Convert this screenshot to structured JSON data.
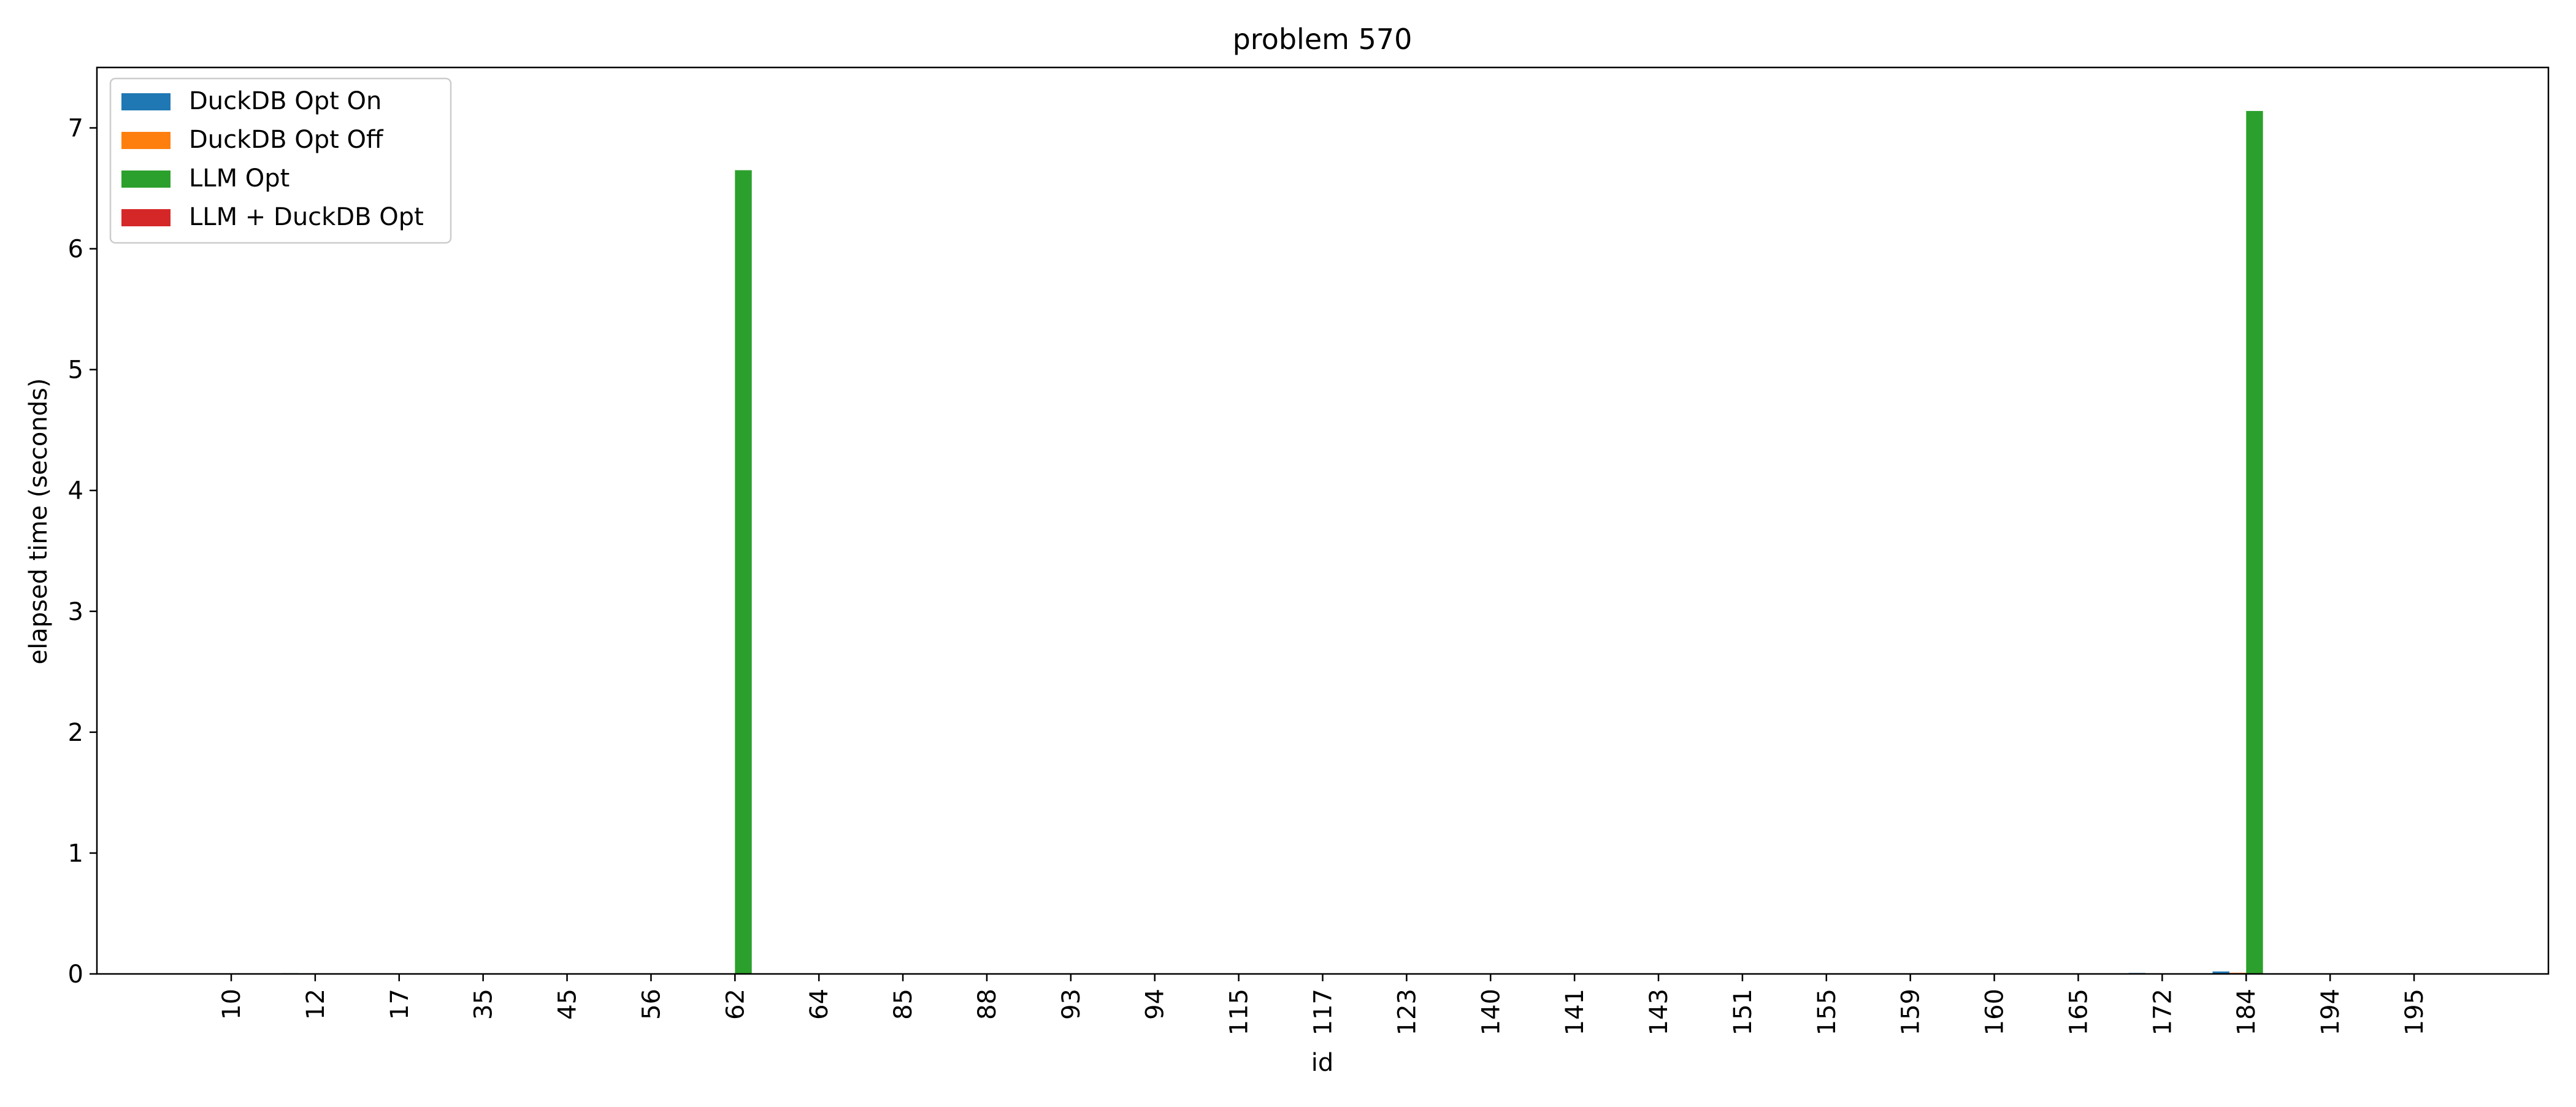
{
  "chart_data": {
    "type": "bar",
    "title": "problem 570",
    "xlabel": "id",
    "ylabel": "elapsed time (seconds)",
    "ylim": [
      0,
      7.5
    ],
    "yticks": [
      0,
      1,
      2,
      3,
      4,
      5,
      6,
      7
    ],
    "grid": false,
    "legend_position": "top-left",
    "categories": [
      "10",
      "12",
      "17",
      "35",
      "45",
      "56",
      "62",
      "64",
      "85",
      "88",
      "93",
      "94",
      "115",
      "117",
      "123",
      "140",
      "141",
      "143",
      "151",
      "155",
      "159",
      "160",
      "165",
      "172",
      "184",
      "194",
      "195"
    ],
    "series": [
      {
        "name": "DuckDB Opt On",
        "color": "#1f77b4",
        "values": [
          0.003,
          0.006,
          0.003,
          0.003,
          0.003,
          0.003,
          0.004,
          0.003,
          0.003,
          0.003,
          0.003,
          0.003,
          0.005,
          0.003,
          0.003,
          0.003,
          0.003,
          0.003,
          0.003,
          0.003,
          0.003,
          0.003,
          0.003,
          0.008,
          0.02,
          0.003,
          0.003
        ]
      },
      {
        "name": "DuckDB Opt Off",
        "color": "#ff7f0e",
        "values": [
          0.002,
          0.004,
          0.002,
          0.002,
          0.002,
          0.002,
          0.002,
          0.002,
          0.002,
          0.002,
          0.002,
          0.002,
          0.003,
          0.002,
          0.002,
          0.002,
          0.002,
          0.002,
          0.002,
          0.002,
          0.002,
          0.002,
          0.002,
          0.005,
          0.01,
          0.002,
          0.002
        ]
      },
      {
        "name": "LLM Opt",
        "color": "#2ca02c",
        "values": [
          0.003,
          0.004,
          0.003,
          0.003,
          0.003,
          0.003,
          6.65,
          0.003,
          0.003,
          0.003,
          0.003,
          0.003,
          0.004,
          0.003,
          0.003,
          0.003,
          0.003,
          0.003,
          0.003,
          0.003,
          0.003,
          0.003,
          0.003,
          0.005,
          7.14,
          0.003,
          0.003
        ]
      },
      {
        "name": "LLM + DuckDB Opt",
        "color": "#d62728",
        "values": [
          0.002,
          0.003,
          0.002,
          0.002,
          0.002,
          0.002,
          0.003,
          0.002,
          0.002,
          0.002,
          0.002,
          0.002,
          0.003,
          0.002,
          0.002,
          0.002,
          0.002,
          0.002,
          0.002,
          0.002,
          0.002,
          0.002,
          0.002,
          0.004,
          0.004,
          0.002,
          0.002
        ]
      }
    ]
  }
}
